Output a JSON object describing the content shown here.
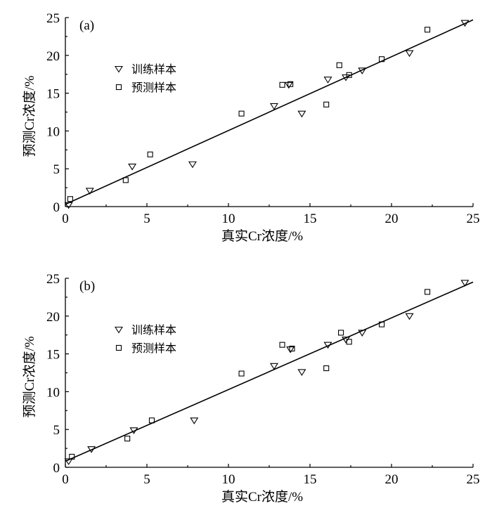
{
  "chart_data": [
    {
      "type": "scatter",
      "panel_label": "(a)",
      "title": "",
      "xlabel": "真实Cr浓度/%",
      "ylabel": "预测Cr浓度/%",
      "xlim": [
        0,
        25
      ],
      "ylim": [
        0,
        25
      ],
      "xticks": [
        0,
        5,
        10,
        15,
        20,
        25
      ],
      "yticks": [
        0,
        5,
        10,
        15,
        20,
        25
      ],
      "grid": false,
      "legend_position": "upper-left",
      "series": [
        {
          "name": "训练样本",
          "marker": "triangle-down",
          "points": [
            [
              0.2,
              0.2
            ],
            [
              1.5,
              2.1
            ],
            [
              4.1,
              5.3
            ],
            [
              7.8,
              5.6
            ],
            [
              12.8,
              13.3
            ],
            [
              13.7,
              16.1
            ],
            [
              14.5,
              12.3
            ],
            [
              16.1,
              16.8
            ],
            [
              17.2,
              17.1
            ],
            [
              18.2,
              18.0
            ],
            [
              21.1,
              20.3
            ],
            [
              24.5,
              24.3
            ]
          ]
        },
        {
          "name": "预测样本",
          "marker": "square",
          "points": [
            [
              0.3,
              1.0
            ],
            [
              3.7,
              3.5
            ],
            [
              5.2,
              6.9
            ],
            [
              10.8,
              12.3
            ],
            [
              13.3,
              16.1
            ],
            [
              13.8,
              16.2
            ],
            [
              16.0,
              13.5
            ],
            [
              16.8,
              18.7
            ],
            [
              17.4,
              17.4
            ],
            [
              19.4,
              19.5
            ],
            [
              22.2,
              23.4
            ]
          ]
        }
      ],
      "fit_line": {
        "x": [
          0,
          25
        ],
        "y": [
          0.3,
          24.7
        ]
      }
    },
    {
      "type": "scatter",
      "panel_label": "(b)",
      "title": "",
      "xlabel": "真实Cr浓度/%",
      "ylabel": "预测Cr浓度/%",
      "xlim": [
        0,
        25
      ],
      "ylim": [
        0,
        25
      ],
      "xticks": [
        0,
        5,
        10,
        15,
        20,
        25
      ],
      "yticks": [
        0,
        5,
        10,
        15,
        20,
        25
      ],
      "grid": false,
      "legend_position": "upper-left",
      "series": [
        {
          "name": "训练样本",
          "marker": "triangle-down",
          "points": [
            [
              0.2,
              0.8
            ],
            [
              1.6,
              2.4
            ],
            [
              4.2,
              4.9
            ],
            [
              7.9,
              6.2
            ],
            [
              12.8,
              13.4
            ],
            [
              13.8,
              15.6
            ],
            [
              14.5,
              12.6
            ],
            [
              16.1,
              16.2
            ],
            [
              17.2,
              16.9
            ],
            [
              18.2,
              17.8
            ],
            [
              21.1,
              20.0
            ],
            [
              24.5,
              24.4
            ]
          ]
        },
        {
          "name": "预测样本",
          "marker": "square",
          "points": [
            [
              0.4,
              1.4
            ],
            [
              3.8,
              3.8
            ],
            [
              5.3,
              6.2
            ],
            [
              10.8,
              12.4
            ],
            [
              13.3,
              16.2
            ],
            [
              13.9,
              15.7
            ],
            [
              16.0,
              13.1
            ],
            [
              16.9,
              17.8
            ],
            [
              17.4,
              16.6
            ],
            [
              19.4,
              18.9
            ],
            [
              22.2,
              23.2
            ]
          ]
        }
      ],
      "fit_line": {
        "x": [
          0,
          25
        ],
        "y": [
          0.8,
          24.5
        ]
      }
    }
  ]
}
